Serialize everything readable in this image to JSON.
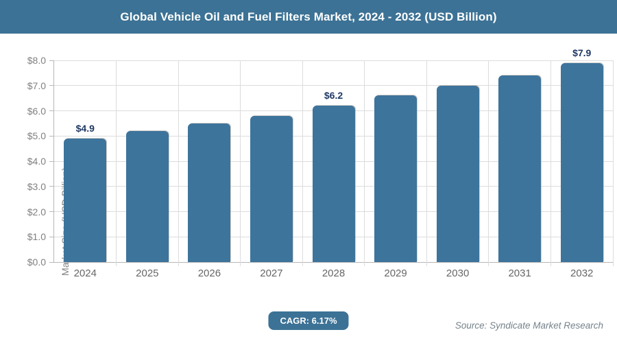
{
  "header": {
    "title": "Global Vehicle Oil and Fuel Filters Market, 2024 - 2032 (USD Billion)"
  },
  "chart_data": {
    "type": "bar",
    "title": "Global Vehicle Oil and Fuel Filters Market, 2024 - 2032 (USD Billion)",
    "categories": [
      "2024",
      "2025",
      "2026",
      "2027",
      "2028",
      "2029",
      "2030",
      "2031",
      "2032"
    ],
    "values": [
      4.9,
      5.2,
      5.5,
      5.8,
      6.2,
      6.6,
      7.0,
      7.4,
      7.9
    ],
    "data_labels": [
      "$4.9",
      "",
      "",
      "",
      "$6.2",
      "",
      "",
      "",
      "$7.9"
    ],
    "xlabel": "",
    "ylabel": "Market Size (USD Billion)",
    "ylim": [
      0,
      8
    ],
    "y_ticks": [
      "$0.0",
      "$1.0",
      "$2.0",
      "$3.0",
      "$4.0",
      "$5.0",
      "$6.0",
      "$7.0",
      "$8.0"
    ],
    "grid": "both",
    "legend": "none"
  },
  "footer": {
    "cagr_label": "CAGR: 6.17%",
    "source": "Source: Syndicate Market Research"
  },
  "colors": {
    "accent": "#3C7295",
    "bar": "#3D749C",
    "data_label": "#1F3864",
    "grid": "#DCDCDC",
    "axis": "#B7B7B7",
    "tick_text": "#808080"
  }
}
